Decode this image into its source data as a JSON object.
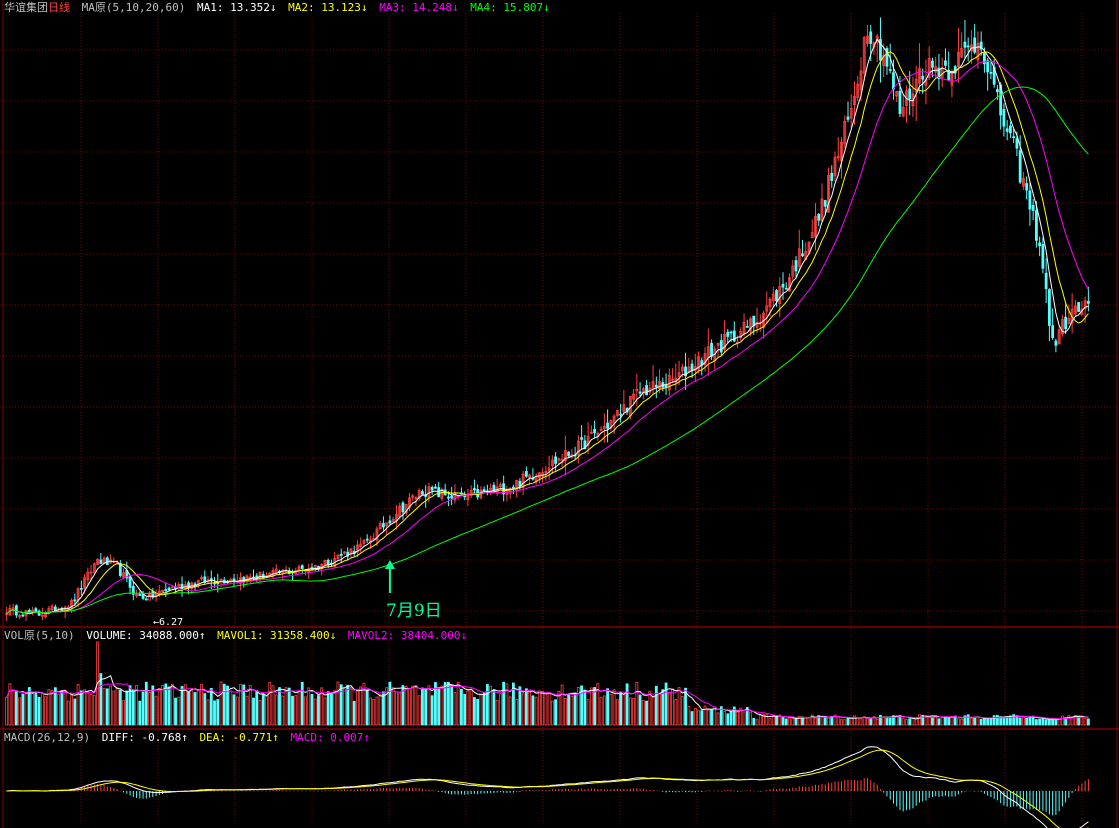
{
  "header": {
    "stock_name": "华谊集团",
    "period": "日线",
    "ma_label": "MA原(5,10,20,60)",
    "ma1": "MA1: 13.352↓",
    "ma2": "MA2: 13.123↓",
    "ma3": "MA3: 14.248↓",
    "ma4": "MA4: 15.807↓"
  },
  "vol_header": {
    "label": "VOL原(5,10)",
    "volume": "VOLUME: 34088.000↑",
    "mavol1": "MAVOL1: 31358.400↓",
    "mavol2": "MAVOL2: 38404.000↓"
  },
  "macd_header": {
    "label": "MACD(26,12,9)",
    "diff": "DIFF: -0.768↑",
    "dea": "DEA: -0.771↑",
    "macd": "MACD: 0.007↑"
  },
  "annotations": {
    "date_label": "7月9日",
    "low_label": "←6.27"
  },
  "colors": {
    "background": "#000000",
    "up": "#ff4040",
    "down": "#54ffff",
    "grid": "#800000",
    "ma1": "#ffffff",
    "ma2": "#ffff00",
    "ma3": "#ff00ff",
    "ma4": "#00ff00",
    "arrow": "#00ff99"
  },
  "chart_data": {
    "type": "candlestick",
    "title": "华谊集团 日线",
    "price_anchors": [
      [
        0,
        5.9
      ],
      [
        10,
        5.8
      ],
      [
        20,
        6.1
      ],
      [
        28,
        7.3
      ],
      [
        34,
        7.1
      ],
      [
        40,
        6.3
      ],
      [
        44,
        6.27
      ],
      [
        50,
        6.5
      ],
      [
        60,
        6.7
      ],
      [
        75,
        6.8
      ],
      [
        95,
        7.1
      ],
      [
        110,
        7.7
      ],
      [
        120,
        8.6
      ],
      [
        128,
        9.2
      ],
      [
        140,
        9.0
      ],
      [
        155,
        9.3
      ],
      [
        165,
        9.8
      ],
      [
        175,
        10.3
      ],
      [
        185,
        11.0
      ],
      [
        195,
        11.9
      ],
      [
        205,
        12.2
      ],
      [
        215,
        12.9
      ],
      [
        230,
        13.8
      ],
      [
        240,
        14.9
      ],
      [
        250,
        16.7
      ],
      [
        260,
        19.6
      ],
      [
        265,
        22.0
      ],
      [
        270,
        21.2
      ],
      [
        275,
        19.6
      ],
      [
        282,
        20.8
      ],
      [
        290,
        20.8
      ],
      [
        300,
        21.6
      ],
      [
        305,
        19.8
      ],
      [
        310,
        18.6
      ],
      [
        318,
        16.0
      ],
      [
        322,
        13.2
      ],
      [
        327,
        14.0
      ],
      [
        333,
        14.3
      ]
    ],
    "low_price": 6.27,
    "ylim": [
      5.5,
      22.3
    ],
    "num_bars": 334,
    "moving_averages": [
      "MA1 (5)",
      "MA2 (10)",
      "MA3 (20)",
      "MA4 (60)"
    ],
    "volume_series_note": "VOLUME with MAVOL1(5), MAVOL2(10)",
    "macd_params": [
      26,
      12,
      9
    ],
    "last_values": {
      "MA1": 13.352,
      "MA2": 13.123,
      "MA3": 14.248,
      "MA4": 15.807,
      "VOLUME": 34088.0,
      "MAVOL1": 31358.4,
      "MAVOL2": 38404.0,
      "DIFF": -0.768,
      "DEA": -0.771,
      "MACD": 0.007
    }
  }
}
